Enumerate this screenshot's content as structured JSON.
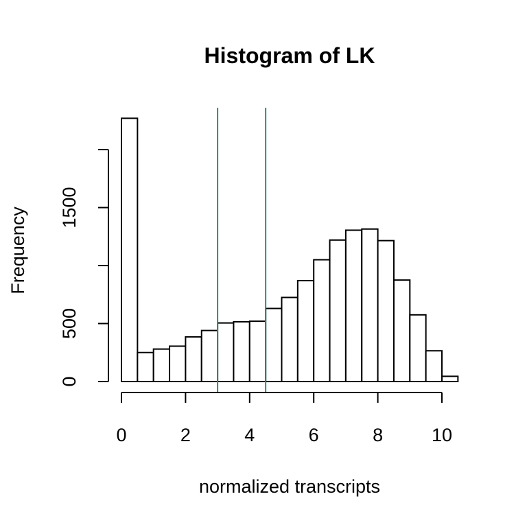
{
  "chart_data": {
    "type": "bar",
    "title": "Histogram of LK",
    "xlabel": "normalized transcripts",
    "ylabel": "Frequency",
    "bin_width": 0.5,
    "bin_start": 0,
    "values": [
      2270,
      250,
      280,
      305,
      385,
      440,
      505,
      515,
      520,
      630,
      725,
      870,
      1050,
      1220,
      1305,
      1315,
      1215,
      875,
      575,
      265,
      45
    ],
    "xlim": [
      0,
      10.5
    ],
    "ylim": [
      0,
      2000
    ],
    "x_ticks": [
      0,
      2,
      4,
      6,
      8,
      10
    ],
    "x_tick_labels": [
      "0",
      "2",
      "4",
      "6",
      "8",
      "10"
    ],
    "y_ticks": [
      0,
      500,
      1000,
      1500,
      2000
    ],
    "y_tick_labels": [
      "0",
      "500",
      "",
      "1500",
      ""
    ],
    "vlines": [
      3.0,
      4.5
    ],
    "vline_color": "#2e8b7a",
    "bar_fill": "#ffffff",
    "bar_stroke": "#000000",
    "grid": false,
    "legend": "none"
  }
}
